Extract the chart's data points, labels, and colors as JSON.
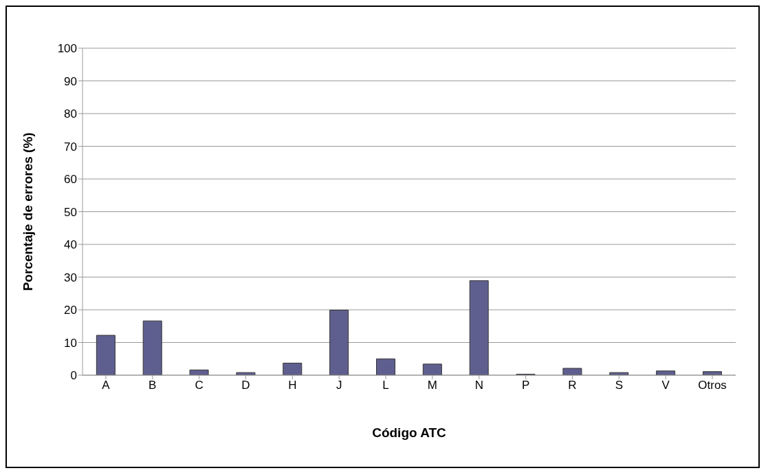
{
  "chart_data": {
    "type": "bar",
    "xlabel": "Código ATC",
    "ylabel": "Porcentaje de errores (%)",
    "categories": [
      "A",
      "B",
      "C",
      "D",
      "H",
      "J",
      "L",
      "M",
      "N",
      "P",
      "R",
      "S",
      "V",
      "Otros"
    ],
    "values": [
      12.2,
      16.6,
      1.6,
      0.8,
      3.7,
      19.9,
      5.0,
      3.4,
      28.9,
      0.3,
      2.1,
      0.8,
      1.3,
      1.1
    ],
    "color": "#5f5f8f",
    "ylim": [
      0,
      100
    ],
    "yticks": [
      0,
      10,
      20,
      30,
      40,
      50,
      60,
      70,
      80,
      90,
      100
    ],
    "grid": "y",
    "legend": false
  }
}
